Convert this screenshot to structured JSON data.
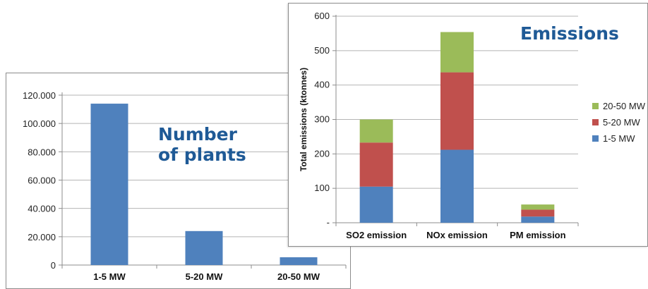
{
  "chart_data": [
    {
      "type": "bar",
      "title": "Number\nof plants",
      "categories": [
        "1-5 MW",
        "5-20 MW",
        "20-50 MW"
      ],
      "values": [
        114000,
        24000,
        5500
      ],
      "ylim": [
        0,
        120000
      ],
      "yticks": [
        0,
        20000,
        40000,
        60000,
        80000,
        100000,
        120000
      ],
      "ytick_labels": [
        "0",
        "20.000",
        "40.000",
        "60.000",
        "80.000",
        "100.000",
        "120.000"
      ],
      "grid": true,
      "colors": [
        "#4f81bd"
      ]
    },
    {
      "type": "bar",
      "stacked": true,
      "title": "Emissions",
      "ylabel": "Total emissions (ktonnes)",
      "categories": [
        "SO2 emission",
        "NOx emission",
        "PM emission"
      ],
      "series": [
        {
          "name": "1-5 MW",
          "color": "#4f81bd",
          "values": [
            105,
            212,
            18
          ]
        },
        {
          "name": "5-20 MW",
          "color": "#c0504d",
          "values": [
            128,
            225,
            20
          ]
        },
        {
          "name": "20-50 MW",
          "color": "#9bbb59",
          "values": [
            67,
            117,
            15
          ]
        }
      ],
      "ylim": [
        0,
        600
      ],
      "yticks": [
        0,
        100,
        200,
        300,
        400,
        500,
        600
      ],
      "ytick_labels": [
        "-",
        "100",
        "200",
        "300",
        "400",
        "500",
        "600"
      ],
      "grid": true,
      "legend_position": "right"
    }
  ]
}
